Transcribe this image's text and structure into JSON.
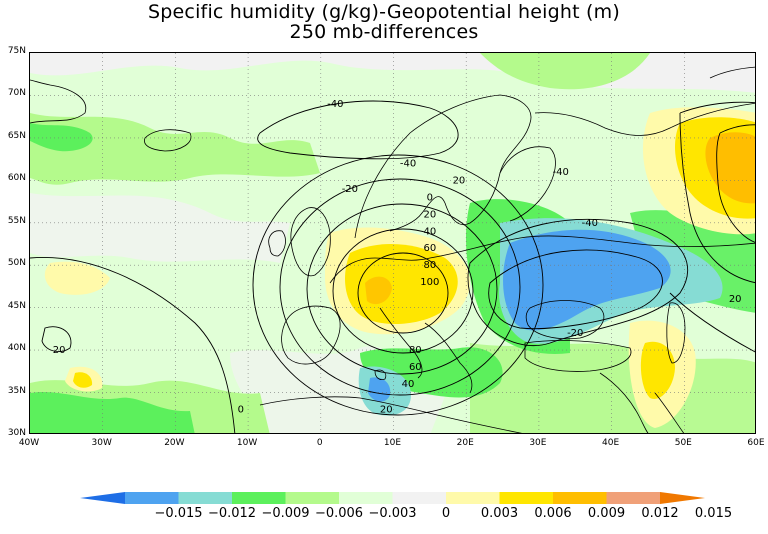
{
  "title": {
    "line1": "Specific humidity (g/kg)-Geopotential height (m)",
    "line2": "250 mb-differences"
  },
  "map": {
    "region": "Europe and North Atlantic",
    "lon_range": [
      -40,
      60
    ],
    "lat_range": [
      30,
      75
    ],
    "grid_style": "dotted",
    "lat_ticks": [
      "75N",
      "70N",
      "65N",
      "60N",
      "55N",
      "50N",
      "45N",
      "40N",
      "35N",
      "30N"
    ],
    "lon_ticks": [
      "40W",
      "30W",
      "20W",
      "10W",
      "0",
      "10E",
      "20E",
      "30E",
      "40E",
      "50E",
      "60E"
    ]
  },
  "contours": {
    "variable": "Geopotential height difference (m)",
    "labels": [
      {
        "value": "-40",
        "lon": 2,
        "lat": 69
      },
      {
        "value": "-40",
        "lon": 12,
        "lat": 62
      },
      {
        "value": "-20",
        "lon": 4,
        "lat": 59
      },
      {
        "value": "20",
        "lon": 19,
        "lat": 60
      },
      {
        "value": "-40",
        "lon": 33,
        "lat": 61
      },
      {
        "value": "0",
        "lon": 15,
        "lat": 58
      },
      {
        "value": "20",
        "lon": 15,
        "lat": 56
      },
      {
        "value": "40",
        "lon": 15,
        "lat": 54
      },
      {
        "value": "60",
        "lon": 15,
        "lat": 52
      },
      {
        "value": "80",
        "lon": 15,
        "lat": 50
      },
      {
        "value": "100",
        "lon": 15,
        "lat": 48
      },
      {
        "value": "-40",
        "lon": 37,
        "lat": 55
      },
      {
        "value": "20",
        "lon": 57,
        "lat": 46
      },
      {
        "value": "-20",
        "lon": 35,
        "lat": 42
      },
      {
        "value": "80",
        "lon": 13,
        "lat": 40
      },
      {
        "value": "60",
        "lon": 13,
        "lat": 38
      },
      {
        "value": "40",
        "lon": 12,
        "lat": 36
      },
      {
        "value": "20",
        "lon": 9,
        "lat": 33
      },
      {
        "value": "20",
        "lon": -36,
        "lat": 40
      },
      {
        "value": "0",
        "lon": -11,
        "lat": 33
      }
    ]
  },
  "shading": {
    "variable": "Specific humidity difference (g/kg)",
    "features": [
      {
        "type": "positive maximum",
        "center_lon": 10,
        "center_lat": 47,
        "level": "0.006–0.009"
      },
      {
        "type": "negative minimum",
        "center_lon": 35,
        "center_lat": 49,
        "level": "-0.015–-0.012"
      },
      {
        "type": "positive maximum",
        "center_lon": 57,
        "center_lat": 63,
        "level": "0.009–0.012"
      },
      {
        "type": "negative minimum",
        "center_lon": 9,
        "center_lat": 35,
        "level": "-0.012–-0.009"
      },
      {
        "type": "positive maximum",
        "center_lon": 48,
        "center_lat": 35,
        "level": "0.006–0.009"
      }
    ]
  },
  "colorbar": {
    "labels": [
      "-0.015",
      "-0.012",
      "-0.009",
      "-0.006",
      "-0.003",
      "0",
      "0.003",
      "0.006",
      "0.009",
      "0.012",
      "0.015"
    ],
    "colors": [
      "#1e6ee6",
      "#4ea3f0",
      "#86dcd4",
      "#5cf05c",
      "#b4fa8c",
      "#e1ffd7",
      "#f2f2f2",
      "#fffaaa",
      "#ffe600",
      "#ffbe00",
      "#f0a078",
      "#f07800"
    ]
  }
}
